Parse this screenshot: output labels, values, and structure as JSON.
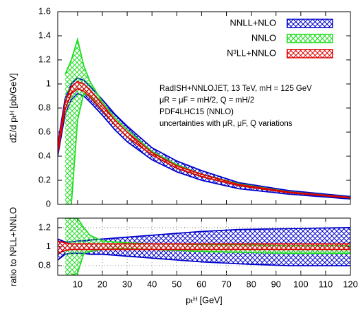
{
  "chart_data": [
    {
      "type": "band",
      "ylabel": "dΣ/d pₜᴴ [pb/GeV]",
      "annotations": [
        "RadISH+NNLOJET, 13 TeV, mH = 125 GeV",
        "μR = μF = mH/2, Q = mH/2",
        "PDF4LHC15 (NNLO)",
        "uncertainties with μR, μF, Q variations"
      ],
      "x": [
        2,
        5,
        7.5,
        10,
        12.5,
        15,
        20,
        25,
        30,
        40,
        50,
        60,
        75,
        95,
        120
      ],
      "xlim": [
        2,
        120
      ],
      "xticks": [
        10,
        20,
        30,
        40,
        50,
        60,
        70,
        80,
        90,
        100,
        110,
        120
      ],
      "ylim": [
        0,
        1.6
      ],
      "yticks": [
        0,
        0.2,
        0.4,
        0.6,
        0.8,
        1,
        1.2,
        1.4,
        1.6
      ],
      "grid": false,
      "legend": "top-right",
      "series": [
        {
          "name": "NNLL+NLO",
          "color": "#0000cc",
          "low": [
            0.4,
            0.75,
            0.87,
            0.92,
            0.9,
            0.85,
            0.74,
            0.62,
            0.52,
            0.37,
            0.27,
            0.2,
            0.13,
            0.085,
            0.045
          ],
          "high": [
            0.5,
            0.88,
            1.0,
            1.05,
            1.03,
            0.98,
            0.87,
            0.75,
            0.65,
            0.47,
            0.36,
            0.28,
            0.18,
            0.115,
            0.065
          ]
        },
        {
          "name": "NNLO",
          "color": "#22dd22",
          "low": [
            null,
            0,
            0,
            0.7,
            0.92,
            0.9,
            0.78,
            0.66,
            0.56,
            0.41,
            0.3,
            0.23,
            0.155,
            0.097,
            0.053
          ],
          "high": [
            null,
            1.08,
            1.2,
            1.37,
            1.15,
            1.02,
            0.85,
            0.72,
            0.62,
            0.44,
            0.33,
            0.25,
            0.17,
            0.105,
            0.058
          ]
        },
        {
          "name": "N³LL+NNLO",
          "color": "#dd0000",
          "low": [
            0.42,
            0.79,
            0.92,
            0.96,
            0.94,
            0.89,
            0.78,
            0.66,
            0.56,
            0.41,
            0.3,
            0.23,
            0.155,
            0.097,
            0.053
          ],
          "high": [
            0.48,
            0.85,
            0.98,
            1.02,
            1.0,
            0.95,
            0.83,
            0.7,
            0.6,
            0.43,
            0.32,
            0.25,
            0.165,
            0.103,
            0.057
          ]
        }
      ]
    },
    {
      "type": "band",
      "ylabel": "ratio to N³LL+NNLO",
      "xlabel": "pₜᴴ [GeV]",
      "x": [
        2,
        5,
        7.5,
        10,
        12.5,
        15,
        20,
        25,
        30,
        40,
        50,
        60,
        75,
        95,
        120
      ],
      "xlim": [
        2,
        120
      ],
      "xticks": [
        10,
        20,
        30,
        40,
        50,
        60,
        70,
        80,
        90,
        100,
        110,
        120
      ],
      "ylim": [
        0.7,
        1.3
      ],
      "yticks": [
        0.8,
        1,
        1.2
      ],
      "grid": true,
      "series": [
        {
          "color": "#0000cc",
          "low": [
            0.86,
            0.92,
            0.93,
            0.93,
            0.93,
            0.92,
            0.92,
            0.91,
            0.9,
            0.88,
            0.86,
            0.84,
            0.82,
            0.8,
            0.8
          ],
          "high": [
            1.08,
            1.05,
            1.05,
            1.06,
            1.06,
            1.07,
            1.08,
            1.09,
            1.1,
            1.12,
            1.14,
            1.16,
            1.18,
            1.19,
            1.2
          ]
        },
        {
          "color": "#22dd22",
          "low": [
            null,
            0.7,
            0.7,
            0.72,
            0.93,
            0.95,
            0.97,
            0.98,
            0.98,
            0.97,
            0.96,
            0.95,
            0.94,
            0.93,
            0.93
          ],
          "high": [
            null,
            1.3,
            1.3,
            1.3,
            1.2,
            1.12,
            1.06,
            1.05,
            1.04,
            1.03,
            1.03,
            1.02,
            1.02,
            1.01,
            1.01
          ]
        },
        {
          "color": "#dd0000",
          "low": [
            0.93,
            0.96,
            0.97,
            0.97,
            0.97,
            0.97,
            0.97,
            0.97,
            0.97,
            0.97,
            0.97,
            0.97,
            0.97,
            0.97,
            0.97
          ],
          "high": [
            1.06,
            1.04,
            1.03,
            1.03,
            1.03,
            1.03,
            1.03,
            1.03,
            1.03,
            1.03,
            1.03,
            1.03,
            1.03,
            1.03,
            1.03
          ]
        }
      ]
    }
  ]
}
